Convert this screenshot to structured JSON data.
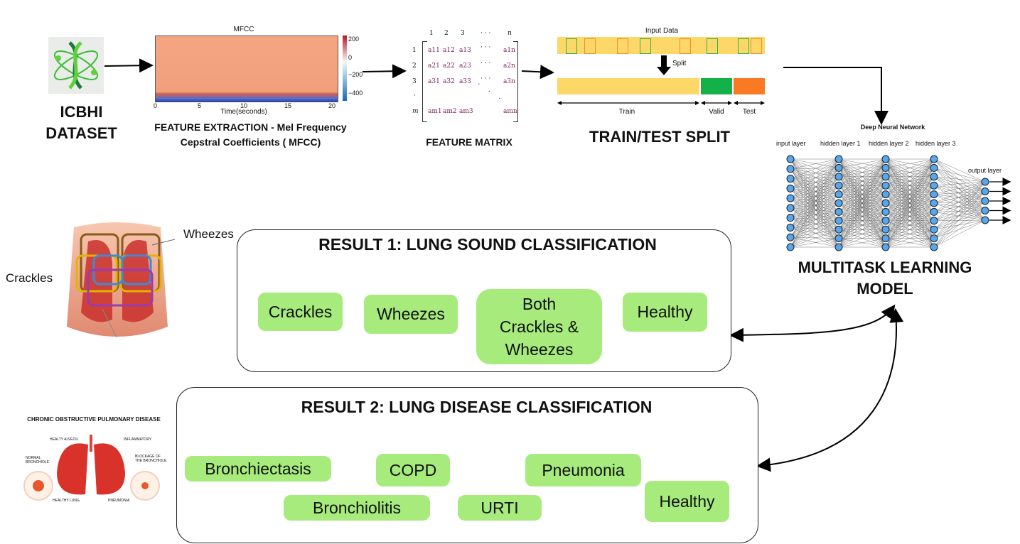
{
  "stages": {
    "dataset": {
      "line1": "ICBHI",
      "line2": "DATASET"
    },
    "feature_extraction": {
      "line1": "FEATURE EXTRACTION - Mel Frequency",
      "line2": "Cepstral Coefficients ( MFCC)"
    },
    "feature_matrix": {
      "label": "FEATURE MATRIX"
    },
    "split": {
      "label": "TRAIN/TEST SPLIT"
    },
    "model": {
      "line1": "MULTITASK LEARNING",
      "line2": "MODEL"
    }
  },
  "mfcc_plot": {
    "title": "MFCC",
    "xlabel": "Time(seconds)",
    "xticks": [
      "0",
      "5",
      "10",
      "15",
      "20"
    ],
    "colorbar_ticks": [
      "200",
      "0",
      "−200",
      "−400"
    ]
  },
  "matrix": {
    "col_headers": [
      "1",
      "2",
      "3",
      "· · ·",
      "n"
    ],
    "row_headers": [
      "1",
      "2",
      "3",
      "·",
      "m"
    ],
    "cells": [
      [
        "a11",
        "a12",
        "a13",
        "· · ·",
        "a1n"
      ],
      [
        "a21",
        "a22",
        "a23",
        "· · ·",
        "a2n"
      ],
      [
        "a31",
        "a32",
        "a33",
        "· · ·",
        "a3n"
      ],
      [
        "am1",
        "am2",
        "am3",
        "",
        "amn"
      ]
    ]
  },
  "split_fig": {
    "input_label": "Input Data",
    "split_label": "Split",
    "train": "Train",
    "valid": "Valid",
    "test": "Test",
    "colors": {
      "train": "#fdd868",
      "valid": "#14b04a",
      "test": "#f97a22"
    }
  },
  "network": {
    "title": "Deep Neural Network",
    "layers": [
      "input layer",
      "hidden layer 1",
      "hidden layer 2",
      "hidden layer 3",
      "output layer"
    ]
  },
  "lung_illustration": {
    "wheezes": "Wheezes",
    "crackles": "Crackles"
  },
  "copd_illustration": {
    "title": "CHRONIC OBSTRUCTIVE PULMONARY DISEASE",
    "healthy_alveoli": "HEALTY ALVEOLI",
    "inflammatory": "INFLAMMATORY",
    "normal_bronchiole": "NORMAL BRONCHIOLE",
    "blockage": "BLOCKAGE OF THE BRONCHIOLE",
    "healthy_lung": "HEALTHY LUNG",
    "pneumonia": "PNEUMONIA"
  },
  "result1": {
    "title": "RESULT 1: LUNG SOUND CLASSIFICATION",
    "classes": [
      "Crackles",
      "Wheezes",
      "Both Crackles & Wheezes",
      "Healthy"
    ]
  },
  "result2": {
    "title": "RESULT 2: LUNG DISEASE CLASSIFICATION",
    "classes": [
      "Bronchiectasis",
      "Bronchiolitis",
      "COPD",
      "URTI",
      "Pneumonia",
      "Healthy"
    ]
  },
  "colors": {
    "chip": "#a6eb7c",
    "branch_line": "#2f6fd6",
    "mfcc_fill": "#f4a582"
  }
}
